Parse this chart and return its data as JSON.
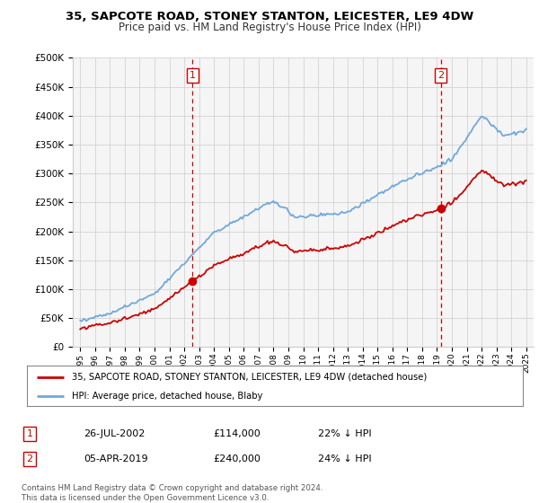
{
  "title": "35, SAPCOTE ROAD, STONEY STANTON, LEICESTER, LE9 4DW",
  "subtitle": "Price paid vs. HM Land Registry's House Price Index (HPI)",
  "hpi_label": "HPI: Average price, detached house, Blaby",
  "property_label": "35, SAPCOTE ROAD, STONEY STANTON, LEICESTER, LE9 4DW (detached house)",
  "footnote": "Contains HM Land Registry data © Crown copyright and database right 2024.\nThis data is licensed under the Open Government Licence v3.0.",
  "sale1_x": 2002.56,
  "sale1_y": 114000,
  "sale2_x": 2019.26,
  "sale2_y": 240000,
  "vline1_x": 2002.56,
  "vline2_x": 2019.26,
  "ylim": [
    0,
    500000
  ],
  "xlim": [
    1994.5,
    2025.5
  ],
  "yticks": [
    0,
    50000,
    100000,
    150000,
    200000,
    250000,
    300000,
    350000,
    400000,
    450000,
    500000
  ],
  "xticks": [
    1995,
    1996,
    1997,
    1998,
    1999,
    2000,
    2001,
    2002,
    2003,
    2004,
    2005,
    2006,
    2007,
    2008,
    2009,
    2010,
    2011,
    2012,
    2013,
    2014,
    2015,
    2016,
    2017,
    2018,
    2019,
    2020,
    2021,
    2022,
    2023,
    2024,
    2025
  ],
  "hpi_color": "#6fa8dc",
  "sale_color": "#cc0000",
  "vline_color": "#cc0000",
  "bg_color": "#f5f5f5",
  "grid_color": "#cccccc",
  "ann1_date": "26-JUL-2002",
  "ann1_price": "£114,000",
  "ann1_hpi": "22% ↓ HPI",
  "ann2_date": "05-APR-2019",
  "ann2_price": "£240,000",
  "ann2_hpi": "24% ↓ HPI"
}
